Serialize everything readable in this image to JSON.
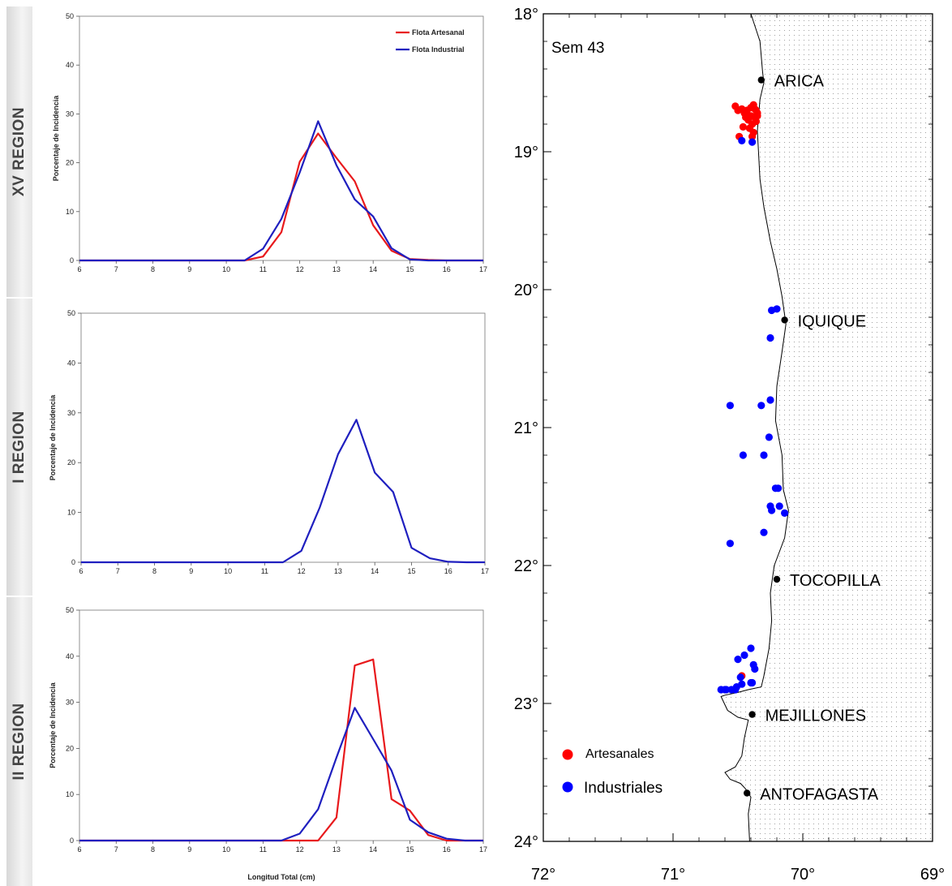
{
  "chart_data": [
    {
      "type": "line",
      "region": "XV REGION",
      "ylabel": "Porcentaje de Incidencia",
      "xlabel": "",
      "xlim": [
        6,
        17
      ],
      "ylim": [
        0,
        50
      ],
      "xticks": [
        "6",
        "7",
        "8",
        "9",
        "10",
        "11",
        "12",
        "13",
        "14",
        "15",
        "16",
        "17"
      ],
      "yticks": [
        "0",
        "10",
        "20",
        "30",
        "40",
        "50"
      ],
      "legend": "top-right",
      "series": [
        {
          "name": "Flota Artesanal",
          "color": "#e8191c",
          "x": [
            6,
            6.5,
            7,
            7.5,
            8,
            8.5,
            9,
            9.5,
            10,
            10.5,
            11,
            11.5,
            12,
            12.5,
            13,
            13.5,
            14,
            14.5,
            15,
            15.5,
            16,
            16.5,
            17
          ],
          "y": [
            0,
            0,
            0,
            0,
            0,
            0,
            0,
            0,
            0,
            0,
            0.8,
            5.8,
            20.2,
            26,
            21,
            16.2,
            7.2,
            2,
            0.3,
            0.1,
            0,
            0,
            0
          ]
        },
        {
          "name": "Flota Industrial",
          "color": "#1f1fbf",
          "x": [
            6,
            6.5,
            7,
            7.5,
            8,
            8.5,
            9,
            9.5,
            10,
            10.5,
            11,
            11.5,
            12,
            12.5,
            13,
            13.5,
            14,
            14.5,
            15,
            15.5,
            16,
            16.5,
            17
          ],
          "y": [
            0,
            0,
            0,
            0,
            0,
            0,
            0,
            0,
            0,
            0,
            2.4,
            8.5,
            18,
            28.5,
            19.5,
            12.5,
            9,
            2.5,
            0.2,
            0,
            0,
            0,
            0
          ]
        }
      ]
    },
    {
      "type": "line",
      "region": "I REGION",
      "ylabel": "Porcentaje de Incidencia",
      "xlabel": "",
      "xlim": [
        6,
        17
      ],
      "ylim": [
        0,
        50
      ],
      "xticks": [
        "6",
        "7",
        "8",
        "9",
        "10",
        "11",
        "12",
        "13",
        "14",
        "15",
        "16",
        "17"
      ],
      "yticks": [
        "0",
        "10",
        "20",
        "30",
        "40",
        "50"
      ],
      "series": [
        {
          "name": "",
          "color": "#1f1fbf",
          "x": [
            6,
            6.5,
            7,
            7.5,
            8,
            8.5,
            9,
            9.5,
            10,
            10.5,
            11,
            11.5,
            12,
            12.5,
            13,
            13.5,
            14,
            14.5,
            15,
            15.5,
            16,
            16.5,
            17
          ],
          "y": [
            0,
            0,
            0,
            0,
            0,
            0,
            0,
            0,
            0,
            0,
            0,
            0,
            2.3,
            11,
            21.7,
            28.6,
            18,
            14.1,
            2.9,
            0.8,
            0.1,
            0,
            0
          ]
        }
      ]
    },
    {
      "type": "line",
      "region": "II REGION",
      "ylabel": "Porcentaje de Incidencia",
      "xlabel": "Longitud Total (cm)",
      "xlim": [
        6,
        17
      ],
      "ylim": [
        0,
        50
      ],
      "xticks": [
        "6",
        "7",
        "8",
        "9",
        "10",
        "11",
        "12",
        "13",
        "14",
        "15",
        "16",
        "17"
      ],
      "yticks": [
        "0",
        "10",
        "20",
        "30",
        "40",
        "50"
      ],
      "series": [
        {
          "name": "",
          "color": "#e8191c",
          "x": [
            6,
            6.5,
            7,
            7.5,
            8,
            8.5,
            9,
            9.5,
            10,
            10.5,
            11,
            11.5,
            12,
            12.5,
            13,
            13.5,
            14,
            14.5,
            15,
            15.5,
            16,
            16.5,
            17
          ],
          "y": [
            0,
            0,
            0,
            0,
            0,
            0,
            0,
            0,
            0,
            0,
            0,
            0,
            0,
            0,
            5,
            38,
            39.3,
            9,
            6.5,
            1.2,
            0,
            0,
            0
          ]
        },
        {
          "name": "",
          "color": "#1f1fbf",
          "x": [
            6,
            6.5,
            7,
            7.5,
            8,
            8.5,
            9,
            9.5,
            10,
            10.5,
            11,
            11.5,
            12,
            12.5,
            13,
            13.5,
            14,
            14.5,
            15,
            15.5,
            16,
            16.5,
            17
          ],
          "y": [
            0,
            0,
            0,
            0,
            0,
            0,
            0,
            0,
            0,
            0,
            0,
            0,
            1.5,
            6.8,
            18,
            28.8,
            22,
            15.2,
            4.5,
            1.8,
            0.4,
            0,
            0
          ]
        }
      ]
    },
    {
      "type": "scatter",
      "title": "Sem 43",
      "x_ticks": [
        "72°",
        "71°",
        "70°",
        "69°"
      ],
      "y_ticks": [
        "18°",
        "19°",
        "20°",
        "21°",
        "22°",
        "23°",
        "24°"
      ],
      "xlim": [
        72,
        69
      ],
      "ylim": [
        18,
        24
      ],
      "cities": [
        {
          "name": "ARICA",
          "lon": 70.32,
          "lat": 18.48
        },
        {
          "name": "IQUIQUE",
          "lon": 70.14,
          "lat": 20.22
        },
        {
          "name": "TOCOPILLA",
          "lon": 70.2,
          "lat": 22.1
        },
        {
          "name": "MEJILLONES",
          "lon": 70.39,
          "lat": 23.08
        },
        {
          "name": "ANTOFAGASTA",
          "lon": 70.43,
          "lat": 23.65
        }
      ],
      "legend": "bottom-left",
      "series": [
        {
          "name": "Artesanales",
          "color": "#ff0000",
          "points": [
            [
              70.52,
              18.67
            ],
            [
              70.5,
              18.7
            ],
            [
              70.47,
              18.69
            ],
            [
              70.45,
              18.72
            ],
            [
              70.43,
              18.7
            ],
            [
              70.4,
              18.68
            ],
            [
              70.38,
              18.66
            ],
            [
              70.36,
              18.7
            ],
            [
              70.35,
              18.72
            ],
            [
              70.37,
              18.75
            ],
            [
              70.4,
              18.74
            ],
            [
              70.42,
              18.77
            ],
            [
              70.44,
              18.75
            ],
            [
              70.46,
              18.82
            ],
            [
              70.39,
              18.8
            ],
            [
              70.41,
              18.83
            ],
            [
              70.38,
              18.86
            ],
            [
              70.39,
              18.89
            ],
            [
              70.49,
              18.89
            ],
            [
              70.36,
              18.78
            ],
            [
              70.35,
              18.74
            ],
            [
              70.37,
              18.69
            ],
            [
              70.47,
              22.8
            ]
          ]
        },
        {
          "name": "Industriales",
          "color": "#0000ff",
          "points": [
            [
              70.47,
              18.92
            ],
            [
              70.39,
              18.93
            ],
            [
              70.24,
              20.15
            ],
            [
              70.2,
              20.14
            ],
            [
              70.25,
              20.35
            ],
            [
              70.56,
              20.84
            ],
            [
              70.32,
              20.84
            ],
            [
              70.25,
              20.8
            ],
            [
              70.26,
              21.07
            ],
            [
              70.46,
              21.2
            ],
            [
              70.3,
              21.2
            ],
            [
              70.21,
              21.44
            ],
            [
              70.19,
              21.44
            ],
            [
              70.25,
              21.57
            ],
            [
              70.24,
              21.6
            ],
            [
              70.18,
              21.57
            ],
            [
              70.14,
              21.62
            ],
            [
              70.3,
              21.76
            ],
            [
              70.56,
              21.84
            ],
            [
              70.4,
              22.6
            ],
            [
              70.38,
              22.72
            ],
            [
              70.37,
              22.75
            ],
            [
              70.45,
              22.65
            ],
            [
              70.5,
              22.68
            ],
            [
              70.48,
              22.81
            ],
            [
              70.4,
              22.85
            ],
            [
              70.39,
              22.85
            ],
            [
              70.47,
              22.86
            ],
            [
              70.51,
              22.88
            ],
            [
              70.52,
              22.9
            ],
            [
              70.55,
              22.9
            ],
            [
              70.59,
              22.9
            ],
            [
              70.6,
              22.9
            ],
            [
              70.63,
              22.9
            ]
          ]
        }
      ]
    }
  ]
}
